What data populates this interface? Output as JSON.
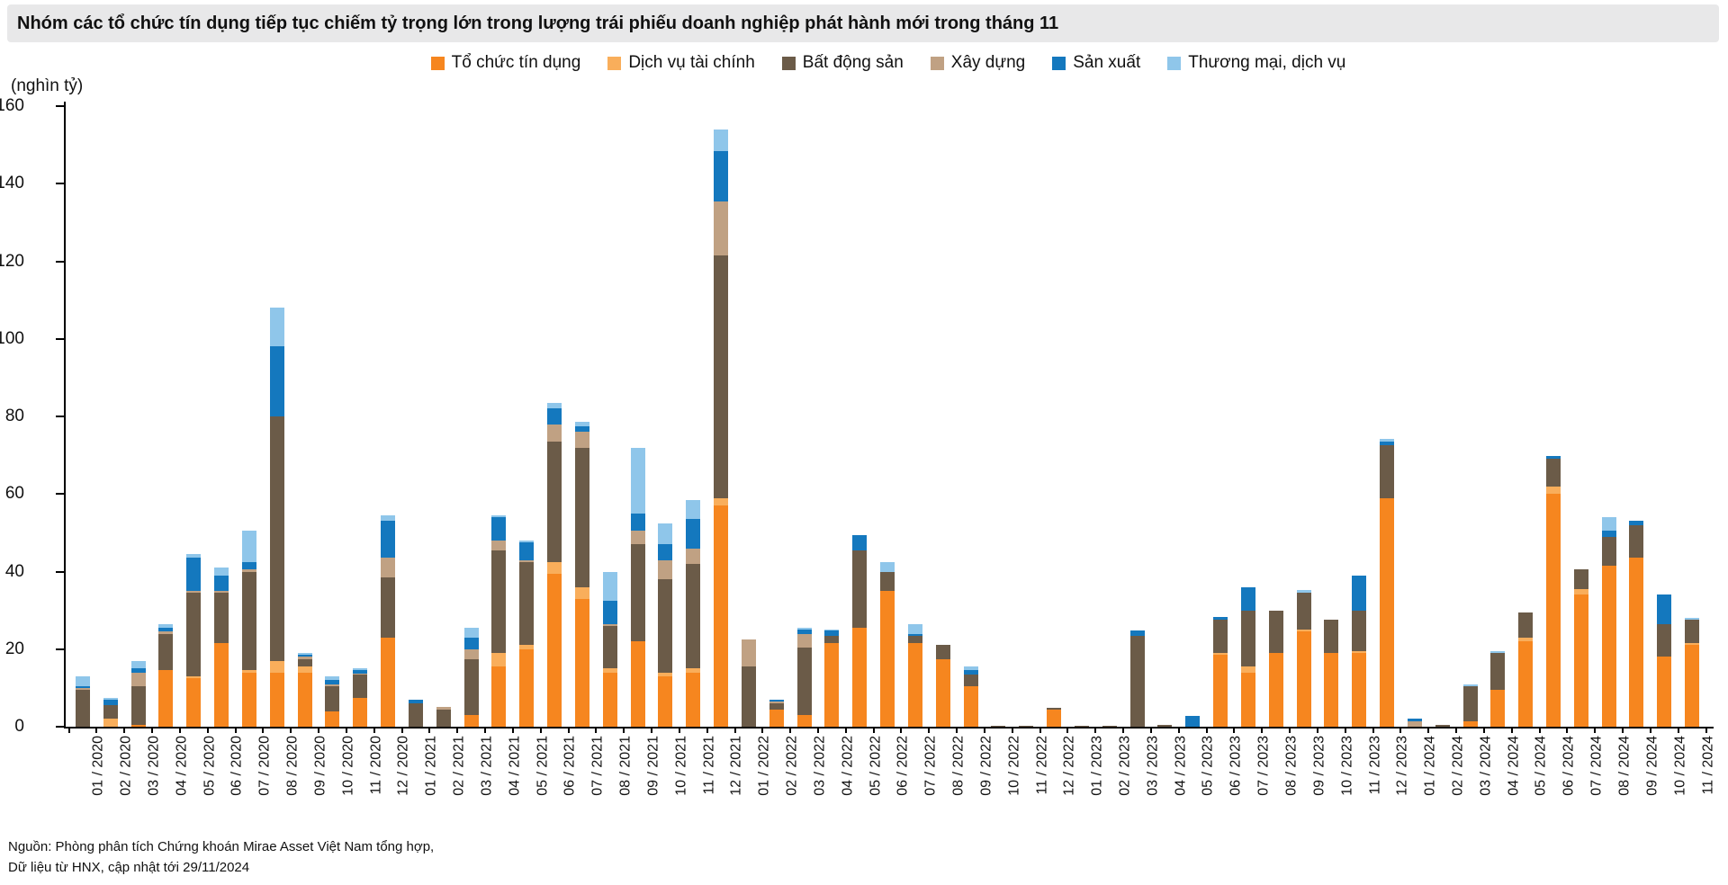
{
  "title": "Nhóm các tổ chức tín dụng tiếp tục chiếm tỷ trọng lớn trong lượng trái phiếu doanh nghiệp phát hành mới trong tháng 11",
  "y_axis": {
    "unit_label": "(nghìn tỷ)",
    "ticks": [
      0,
      20,
      40,
      60,
      80,
      100,
      120,
      140,
      160
    ],
    "max": 160
  },
  "source": {
    "line1": "Nguồn: Phòng phân tích Chứng khoán Mirae Asset Việt Nam tổng hợp,",
    "line2": "Dữ liệu từ HNX, cập nhật tới 29/11/2024"
  },
  "chart_data": {
    "type": "bar",
    "stacked": true,
    "title": "Nhóm các tổ chức tín dụng tiếp tục chiếm tỷ trọng lớn trong lượng trái phiếu doanh nghiệp phát hành mới trong tháng 11",
    "ylabel": "(nghìn tỷ)",
    "ylim": [
      0,
      160
    ],
    "grid": false,
    "legend_position": "top",
    "categories": [
      "01 / 2020",
      "02 / 2020",
      "03 / 2020",
      "04 / 2020",
      "05 / 2020",
      "06 / 2020",
      "07 / 2020",
      "08 / 2020",
      "09 / 2020",
      "10 / 2020",
      "11 / 2020",
      "12 / 2020",
      "01 / 2021",
      "02 / 2021",
      "03 / 2021",
      "04 / 2021",
      "05 / 2021",
      "06 / 2021",
      "07 / 2021",
      "08 / 2021",
      "09 / 2021",
      "10 / 2021",
      "11 / 2021",
      "12 / 2021",
      "01 / 2022",
      "02 / 2022",
      "03 / 2022",
      "04 / 2022",
      "05 / 2022",
      "06 / 2022",
      "07 / 2022",
      "08 / 2022",
      "09 / 2022",
      "10 / 2022",
      "11 / 2022",
      "12 / 2022",
      "01 / 2023",
      "02 / 2023",
      "03 / 2023",
      "04 / 2023",
      "05 / 2023",
      "06 / 2023",
      "07 / 2023",
      "08 / 2023",
      "09 / 2023",
      "10 / 2023",
      "11 / 2023",
      "12 / 2023",
      "01 / 2024",
      "02 / 2024",
      "03 / 2024",
      "04 / 2024",
      "05 / 2024",
      "06 / 2024",
      "07 / 2024",
      "08 / 2024",
      "09 / 2024",
      "10 / 2024",
      "11 / 2024"
    ],
    "series": [
      {
        "name": "Tổ chức tín dụng",
        "color": "#F6861F",
        "values": [
          0,
          0,
          0.5,
          14.5,
          12.5,
          21.5,
          14,
          14,
          14,
          4,
          7.5,
          23,
          0,
          0,
          3,
          15.5,
          20,
          39.5,
          33,
          14,
          22,
          13,
          14,
          57,
          0,
          4.5,
          3,
          21.5,
          25.5,
          35,
          21.5,
          17.5,
          10.5,
          0,
          0,
          4.3,
          0,
          0,
          0,
          0,
          0,
          18.5,
          14,
          19,
          24.5,
          19,
          19,
          59,
          0,
          0,
          1.5,
          9.5,
          22,
          60,
          34,
          41.5,
          43.5,
          18,
          21
        ]
      },
      {
        "name": "Dịch vụ tài chính",
        "color": "#F9AE5B",
        "values": [
          0,
          2,
          0,
          0,
          0.5,
          0,
          0.5,
          3,
          1.5,
          0,
          0,
          0,
          0,
          0,
          0,
          3.5,
          1,
          3,
          3,
          1,
          0,
          1,
          1,
          2,
          0,
          0,
          0,
          0,
          0,
          0,
          0,
          0,
          0,
          0,
          0,
          0,
          0,
          0,
          0,
          0,
          0,
          0.5,
          1.5,
          0,
          0.5,
          0,
          0.5,
          0,
          0,
          0,
          0,
          0,
          1,
          2,
          1.5,
          0,
          0,
          0,
          0.5
        ]
      },
      {
        "name": "Bất động sản",
        "color": "#6B5B48",
        "values": [
          9.5,
          3.5,
          10,
          9.5,
          21.5,
          13,
          25.5,
          63,
          2,
          6.5,
          6,
          15.5,
          6,
          4.5,
          14.5,
          26.5,
          21.5,
          31,
          36,
          11,
          25,
          24,
          27,
          62.5,
          15.5,
          1.5,
          17.5,
          2,
          20,
          5,
          2,
          3.5,
          3,
          0.3,
          0.2,
          0.5,
          0.2,
          0.3,
          23.5,
          0.4,
          0,
          8.5,
          14.5,
          11,
          9.5,
          8.5,
          10.5,
          13.5,
          0,
          0.4,
          9,
          9.5,
          6.5,
          7,
          5,
          7.5,
          8.5,
          8.5,
          6
        ]
      },
      {
        "name": "Xây dựng",
        "color": "#C0A183",
        "values": [
          0.5,
          0,
          3.5,
          0.5,
          0.5,
          0.5,
          0.5,
          0,
          0.5,
          0.5,
          0.3,
          5,
          0,
          0.5,
          2.5,
          2.5,
          0.5,
          4.5,
          4,
          0.5,
          3.5,
          5,
          4,
          14,
          7,
          0.5,
          3.5,
          0,
          0,
          0,
          0,
          0,
          0,
          0,
          0,
          0,
          0,
          0,
          0,
          0,
          0,
          0,
          0,
          0,
          0,
          0,
          0,
          0,
          1.5,
          0,
          0,
          0,
          0,
          0,
          0,
          0,
          0,
          0,
          0
        ]
      },
      {
        "name": "Sản xuất",
        "color": "#1478BE",
        "values": [
          0.5,
          1.5,
          1,
          1,
          8.5,
          4,
          2,
          18,
          0.5,
          1,
          0.7,
          9.5,
          1,
          0,
          3,
          6,
          4.5,
          4,
          1.5,
          6,
          4.5,
          4,
          7.5,
          13,
          0,
          0.5,
          1,
          1.2,
          4,
          0,
          0.5,
          0,
          1,
          0,
          0,
          0,
          0,
          0,
          1.3,
          0,
          2.8,
          0.8,
          6,
          0,
          0,
          0,
          9,
          1,
          0.5,
          0,
          0,
          0,
          0,
          0.7,
          0,
          1.5,
          1.2,
          7.5,
          0
        ]
      },
      {
        "name": "Thương mại, dịch vụ",
        "color": "#8FC6EA",
        "values": [
          2.5,
          0.5,
          2,
          1,
          1,
          2,
          8,
          10,
          0.5,
          1,
          0.5,
          1.5,
          0,
          0,
          2.5,
          0.5,
          0.5,
          1.5,
          1,
          7.5,
          17,
          5.5,
          5,
          5.5,
          0,
          0,
          0.5,
          0.3,
          0,
          2.5,
          2.5,
          0,
          1,
          0,
          0,
          0,
          0,
          0,
          0,
          0,
          0,
          0,
          0,
          0,
          0.8,
          0,
          0,
          0.8,
          0,
          0,
          0.5,
          0.5,
          0,
          0,
          0,
          3.5,
          0,
          0,
          0.5
        ]
      }
    ]
  }
}
